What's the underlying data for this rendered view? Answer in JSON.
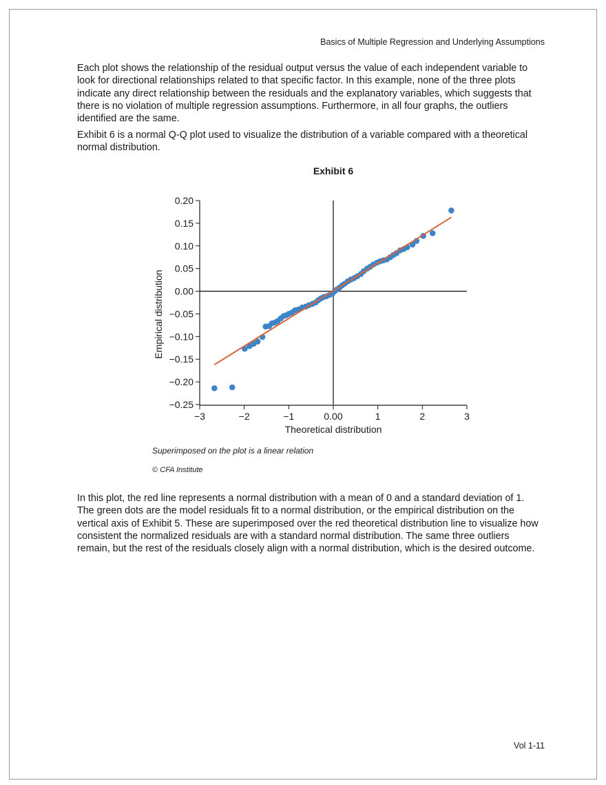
{
  "header": {
    "running_title": "Basics of Multiple Regression and Underlying Assumptions"
  },
  "paragraphs": [
    "Each plot shows the relationship of the residual output versus the value of each independent variable to look for directional relationships related to that specific factor. In this example, none of the three plots indicate any direct relationship between the residuals and the explanatory variables, which suggests that there is no violation of multiple regression assumptions. Furthermore, in all four graphs, the outliers identified are the same.",
    "Exhibit 6 is a normal Q-Q plot used to visualize the distribution of a variable compared with a theoretical normal distribution.",
    "In this plot, the red line represents a normal distribution with a mean of 0 and a standard deviation of 1. The green dots are the model residuals fit to a normal distribution, or the empirical distribution on the vertical axis of Exhibit 5. These are superimposed over the red theoretical distribution line to visualize how consistent the normalized residuals are with a standard normal distribution. The same three outliers remain, but the rest of the residuals closely align with a normal distribution, which is the desired outcome."
  ],
  "exhibit": {
    "title": "Exhibit 6",
    "note": "Superimposed on the plot is a linear relation",
    "source": "© CFA Institute"
  },
  "chart_data": {
    "type": "scatter",
    "title": "Exhibit 6",
    "xlabel": "Theoretical distribution",
    "ylabel": "Empirical distribution",
    "xlim": [
      -3,
      3
    ],
    "ylim": [
      -0.25,
      0.2
    ],
    "x_ticks": [
      -3,
      -2,
      -1,
      0,
      1,
      2,
      3
    ],
    "x_tick_labels": [
      "−3",
      "−2",
      "−1",
      "0.00",
      "1",
      "2",
      "3"
    ],
    "y_ticks": [
      0.2,
      0.15,
      0.1,
      0.05,
      0.0,
      -0.05,
      -0.1,
      -0.15,
      -0.2,
      -0.25
    ],
    "y_tick_labels": [
      "0.20",
      "0.15",
      "0.10",
      "0.05",
      "0.00",
      "−0.05",
      "−0.10",
      "−0.15",
      "−0.20",
      "−0.25"
    ],
    "grid": false,
    "zero_lines": true,
    "colors": {
      "points": "#3d85c6",
      "line": "#d9643a",
      "axes": "#1a1a1a"
    },
    "points": [
      [
        -2.67,
        -0.214
      ],
      [
        -2.27,
        -0.212
      ],
      [
        -1.99,
        -0.127
      ],
      [
        -1.88,
        -0.121
      ],
      [
        -1.79,
        -0.116
      ],
      [
        -1.7,
        -0.111
      ],
      [
        -1.59,
        -0.101
      ],
      [
        -1.52,
        -0.078
      ],
      [
        -1.44,
        -0.077
      ],
      [
        -1.38,
        -0.071
      ],
      [
        -1.31,
        -0.069
      ],
      [
        -1.25,
        -0.066
      ],
      [
        -1.18,
        -0.06
      ],
      [
        -1.12,
        -0.055
      ],
      [
        -1.06,
        -0.053
      ],
      [
        -1.0,
        -0.05
      ],
      [
        -0.93,
        -0.047
      ],
      [
        -0.86,
        -0.042
      ],
      [
        -0.78,
        -0.04
      ],
      [
        -0.7,
        -0.036
      ],
      [
        -0.62,
        -0.034
      ],
      [
        -0.55,
        -0.031
      ],
      [
        -0.47,
        -0.028
      ],
      [
        -0.4,
        -0.025
      ],
      [
        -0.34,
        -0.02
      ],
      [
        -0.28,
        -0.016
      ],
      [
        -0.22,
        -0.013
      ],
      [
        -0.15,
        -0.011
      ],
      [
        -0.08,
        -0.008
      ],
      [
        -0.02,
        -0.005
      ],
      [
        0.03,
        0.0
      ],
      [
        0.08,
        0.004
      ],
      [
        0.14,
        0.008
      ],
      [
        0.2,
        0.013
      ],
      [
        0.26,
        0.017
      ],
      [
        0.33,
        0.022
      ],
      [
        0.4,
        0.026
      ],
      [
        0.47,
        0.029
      ],
      [
        0.54,
        0.033
      ],
      [
        0.62,
        0.038
      ],
      [
        0.68,
        0.044
      ],
      [
        0.76,
        0.05
      ],
      [
        0.83,
        0.054
      ],
      [
        0.9,
        0.059
      ],
      [
        0.98,
        0.063
      ],
      [
        1.05,
        0.066
      ],
      [
        1.12,
        0.068
      ],
      [
        1.2,
        0.07
      ],
      [
        1.28,
        0.075
      ],
      [
        1.35,
        0.08
      ],
      [
        1.42,
        0.084
      ],
      [
        1.5,
        0.09
      ],
      [
        1.58,
        0.093
      ],
      [
        1.66,
        0.097
      ],
      [
        1.78,
        0.103
      ],
      [
        1.87,
        0.111
      ],
      [
        2.02,
        0.122
      ],
      [
        2.23,
        0.128
      ],
      [
        2.65,
        0.178
      ]
    ],
    "fit_line": [
      [
        -2.67,
        -0.162
      ],
      [
        2.65,
        0.163
      ]
    ]
  },
  "footer": {
    "page_number": "Vol 1-11"
  }
}
